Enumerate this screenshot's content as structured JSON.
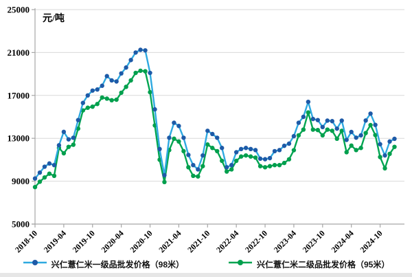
{
  "chart": {
    "unit_label": "元/吨",
    "y_tick_labels": [
      "25000",
      "21000",
      "17000",
      "13000",
      "9000",
      "5000"
    ],
    "x_tick_labels": [
      "2018-10",
      "2019-04",
      "2019-10",
      "2020-04",
      "2020-10",
      "2021-04",
      "2021-10",
      "2022-04",
      "2022-10",
      "2023-04",
      "2023-10",
      "2024-04",
      "2024-10"
    ],
    "legend": [
      {
        "label": "兴仁薏仁米一级品批发价格（98米）"
      },
      {
        "label": "兴仁薏仁米二级品批发价格（95米）"
      }
    ],
    "colors": {
      "series1_line": "#2ea9e0",
      "series1_marker": "#1e5aa7",
      "series2_line": "#00a551",
      "series2_marker": "#009f4d",
      "grid": "#d9d9d9",
      "axis": "#a6a6a6",
      "text": "#000000"
    }
  },
  "chart_data": {
    "type": "line",
    "title": "",
    "xlabel": "",
    "ylabel": "元/吨",
    "ylim": [
      5000,
      25000
    ],
    "y_ticks": [
      5000,
      9000,
      13000,
      17000,
      21000,
      25000
    ],
    "grid": "horizontal",
    "legend_position": "bottom",
    "x_interval": "monthly",
    "categories": [
      "2018-10",
      "2018-11",
      "2018-12",
      "2019-01",
      "2019-02",
      "2019-03",
      "2019-04",
      "2019-05",
      "2019-06",
      "2019-07",
      "2019-08",
      "2019-09",
      "2019-10",
      "2019-11",
      "2019-12",
      "2020-01",
      "2020-02",
      "2020-03",
      "2020-04",
      "2020-05",
      "2020-06",
      "2020-07",
      "2020-08",
      "2020-09",
      "2020-10",
      "2020-11",
      "2020-12",
      "2021-01",
      "2021-02",
      "2021-03",
      "2021-04",
      "2021-05",
      "2021-06",
      "2021-07",
      "2021-08",
      "2021-09",
      "2021-10",
      "2021-11",
      "2021-12",
      "2022-01",
      "2022-02",
      "2022-03",
      "2022-04",
      "2022-05",
      "2022-06",
      "2022-07",
      "2022-08",
      "2022-09",
      "2022-10",
      "2022-11",
      "2022-12",
      "2023-01",
      "2023-02",
      "2023-03",
      "2023-04",
      "2023-05",
      "2023-06",
      "2023-07",
      "2023-08",
      "2023-09",
      "2023-10",
      "2023-11",
      "2023-12",
      "2024-01",
      "2024-02",
      "2024-03",
      "2024-04",
      "2024-05",
      "2024-06",
      "2024-07",
      "2024-08",
      "2024-09",
      "2024-10",
      "2024-11",
      "2024-12",
      "2025-01"
    ],
    "series": [
      {
        "id": "grade1-98m",
        "name": "兴仁薏仁米一级品批发价格（98米）",
        "line_color": "#2ea9e0",
        "marker_color": "#1e5aa7",
        "values": [
          9250,
          9800,
          10350,
          10650,
          10500,
          12350,
          13600,
          12900,
          13050,
          14700,
          16300,
          17000,
          17450,
          17550,
          17900,
          18800,
          18400,
          18300,
          19050,
          19600,
          20300,
          21000,
          21250,
          21200,
          19100,
          15700,
          12000,
          9560,
          13050,
          14450,
          14150,
          13050,
          11450,
          10500,
          10100,
          11400,
          13700,
          13400,
          13050,
          12100,
          10300,
          10500,
          11700,
          12000,
          12100,
          12000,
          11900,
          11100,
          11050,
          11150,
          11800,
          11900,
          12300,
          12500,
          13200,
          14450,
          15000,
          16400,
          14800,
          14700,
          14050,
          14650,
          14600,
          13900,
          14650,
          12850,
          13590,
          13060,
          13275,
          14660,
          15300,
          14250,
          12450,
          11400,
          12700,
          12950
        ]
      },
      {
        "id": "grade2-95m",
        "name": "兴仁薏仁米二级品批发价格（95米）",
        "line_color": "#00a551",
        "marker_color": "#009f4d",
        "values": [
          8450,
          8950,
          9350,
          9700,
          9500,
          12100,
          11600,
          12200,
          12400,
          13900,
          15600,
          15850,
          15950,
          16200,
          16800,
          16700,
          16550,
          16600,
          17250,
          17800,
          18400,
          19100,
          19300,
          19250,
          17300,
          14200,
          11000,
          8920,
          11900,
          12960,
          12700,
          11800,
          10300,
          9500,
          9440,
          10400,
          12420,
          12100,
          11800,
          10900,
          9900,
          10100,
          10900,
          11300,
          11400,
          11300,
          11200,
          10400,
          10300,
          10400,
          10500,
          10500,
          10700,
          11040,
          11890,
          13275,
          13810,
          15410,
          13810,
          13770,
          13275,
          13810,
          13700,
          12960,
          13700,
          11700,
          12320,
          11900,
          12100,
          13490,
          14230,
          13300,
          11250,
          10200,
          11550,
          12200
        ]
      }
    ]
  }
}
